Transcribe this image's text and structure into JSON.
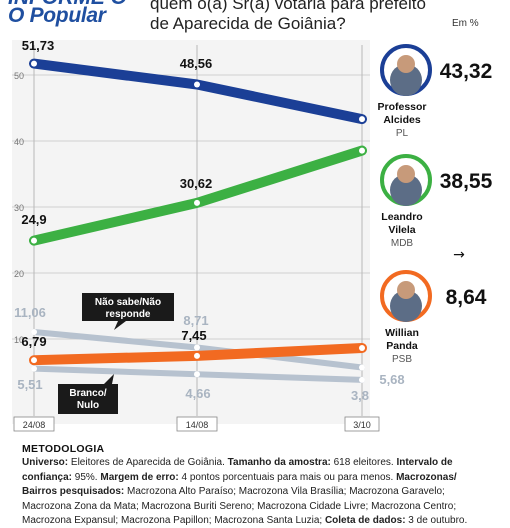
{
  "header": {
    "brand_top": "INFORME O",
    "brand": "O Popular",
    "question_line1": "quem o(a) Sr(a) votaria para prefeito",
    "question_line2": "de Aparecida de Goiânia?",
    "unit": "Em %"
  },
  "chart_data": {
    "type": "line",
    "x": [
      "24/08",
      "14/08",
      "3/10"
    ],
    "ylim": [
      0,
      55
    ],
    "yticks": [
      10,
      20,
      30,
      40,
      50
    ],
    "grid": true,
    "series": [
      {
        "name": "Professor Alcides",
        "color": "#1b3f96",
        "values": [
          51.73,
          48.56,
          43.32
        ],
        "labels": [
          "51,73",
          "48,56",
          null
        ]
      },
      {
        "name": "Leandro Vilela",
        "color": "#3cb043",
        "values": [
          24.9,
          30.62,
          38.55
        ],
        "labels": [
          "24,9",
          "30,62",
          null
        ]
      },
      {
        "name": "Não sabe/Não responde",
        "color": "#b7c2cf",
        "values": [
          11.06,
          8.71,
          5.68
        ],
        "labels": [
          "11,06",
          "8,71",
          "5,68"
        ]
      },
      {
        "name": "Branco/Nulo",
        "color": "#b7c2cf",
        "values": [
          5.51,
          4.66,
          3.8
        ],
        "labels": [
          "5,51",
          "4,66",
          "3,8"
        ]
      },
      {
        "name": "Willian Panda",
        "color": "#f26a21",
        "values": [
          6.79,
          7.45,
          8.64
        ],
        "labels": [
          "6,79",
          "7,45",
          null
        ]
      }
    ],
    "candidates": [
      {
        "value": "43,32",
        "name1": "Professor",
        "name2": "Alcides",
        "party": "PL",
        "ring": "#1b3f96"
      },
      {
        "value": "38,55",
        "name1": "Leandro",
        "name2": "Vilela",
        "party": "MDB",
        "ring": "#3cb043"
      },
      {
        "value": "8,64",
        "name1": "Willian",
        "name2": "Panda",
        "party": "PSB",
        "ring": "#f26a21"
      }
    ],
    "callouts": {
      "nao_sabe": [
        "Não sabe/Não",
        "responde"
      ],
      "branco": [
        "Branco/",
        "Nulo"
      ]
    },
    "arrow": "→"
  },
  "methodology": {
    "title": "METODOLOGIA",
    "universo_label": "Universo:",
    "universo": " Eleitores de Aparecida de Goiânia. ",
    "amostra_label": "Tamanho da amostra:",
    "amostra": " 618 eleitores. ",
    "intervalo_label": "Intervalo de confiança:",
    "intervalo": " 95%. ",
    "margem_label": "Margem de erro:",
    "margem": " 4 pontos porcentuais para mais ou para menos. ",
    "macro_label": "Macrozonas/ Bairros pesquisados:",
    "macro": " Macrozona Alto Paraíso; Macrozona Vila Brasília; Macrozona Garavelo; Macrozona Zona da Mata; Macrozona Buriti Sereno; Macrozona Cidade Livre; Macrozona Centro; Macrozona Expansul; Macrozona Papillon; Macrozona Santa Luzia; ",
    "coleta_label": "Coleta de dados:",
    "coleta": " 3 de outubro."
  }
}
